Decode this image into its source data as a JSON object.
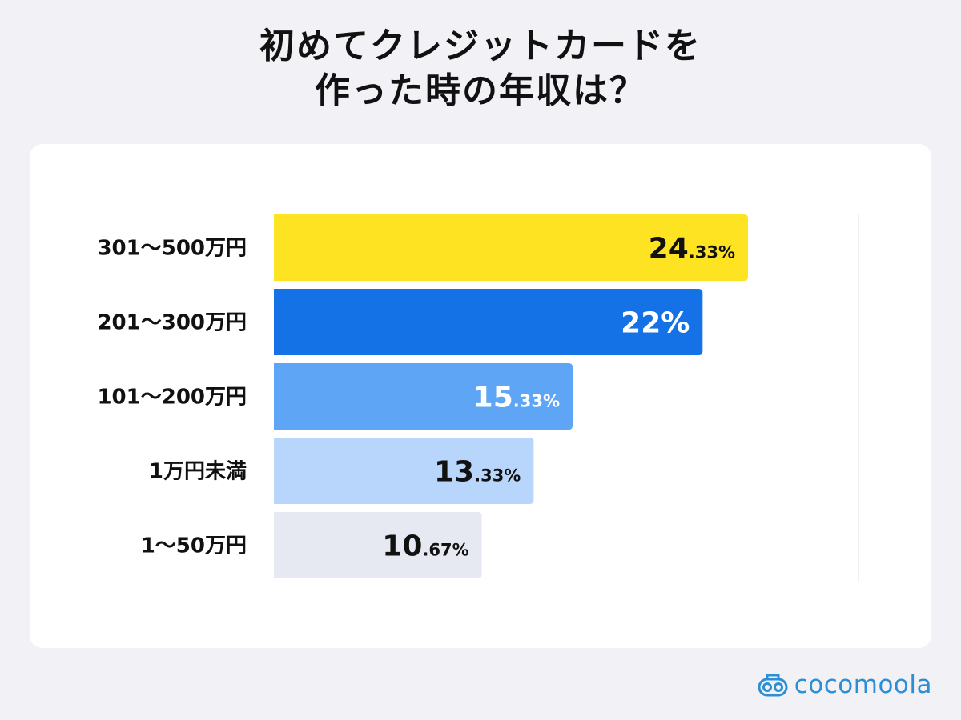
{
  "title_line1": "初めてクレジットカードを",
  "title_line2": "作った時の年収は？",
  "brand": "cocomoola",
  "colors": {
    "background": "#f2f1f5",
    "card": "#ffffff",
    "brand": "#2c8fd6"
  },
  "chart_data": {
    "type": "bar",
    "orientation": "horizontal",
    "title": "初めてクレジットカードを作った時の年収は？",
    "categories": [
      "301〜500万円",
      "201〜300万円",
      "101〜200万円",
      "1万円未満",
      "1〜50万円"
    ],
    "values": [
      24.33,
      22,
      15.33,
      13.33,
      10.67
    ],
    "value_labels": [
      {
        "main": "24",
        "frac": ".33%"
      },
      {
        "main": "22%",
        "frac": ""
      },
      {
        "main": "15",
        "frac": ".33%"
      },
      {
        "main": "13",
        "frac": ".33%"
      },
      {
        "main": "10",
        "frac": ".67%"
      }
    ],
    "bar_colors": [
      "#fde321",
      "#1572e6",
      "#5ea6f5",
      "#b8d6fb",
      "#e6e9f1"
    ],
    "label_colors": [
      "#111111",
      "#ffffff",
      "#ffffff",
      "#111111",
      "#111111"
    ],
    "xlim": [
      0,
      30
    ],
    "grid": false,
    "legend": "none"
  }
}
